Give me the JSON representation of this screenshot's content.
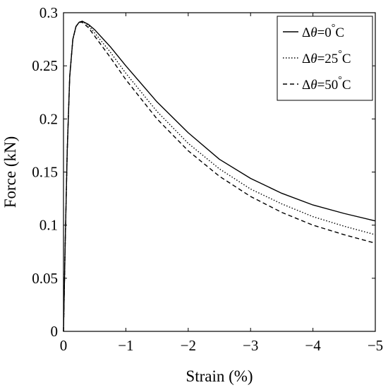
{
  "chart_data": {
    "type": "line",
    "title": "",
    "xlabel": "Strain (%)",
    "ylabel": "Force (kN)",
    "xlim": [
      0,
      -5
    ],
    "ylim": [
      0,
      0.3
    ],
    "x_ticks": [
      0,
      -1,
      -2,
      -3,
      -4,
      -5
    ],
    "x_tick_labels": [
      "0",
      "−1",
      "−2",
      "−3",
      "−4",
      "−5"
    ],
    "y_ticks": [
      0,
      0.05,
      0.1,
      0.15,
      0.2,
      0.25,
      0.3
    ],
    "y_tick_labels": [
      "0",
      "0.05",
      "0.1",
      "0.15",
      "0.2",
      "0.25",
      "0.3"
    ],
    "grid": false,
    "legend_position": "top-right",
    "series": [
      {
        "name": "Δθ=0°C",
        "legend_parts": {
          "pre": "Δ",
          "italic": "θ",
          "mid": "=0",
          "sup": "°",
          "post": "C"
        },
        "line_style": "solid",
        "color": "#000000",
        "x": [
          0,
          -0.03,
          -0.06,
          -0.1,
          -0.15,
          -0.2,
          -0.25,
          -0.3,
          -0.4,
          -0.5,
          -0.75,
          -1.0,
          -1.5,
          -2.0,
          -2.5,
          -3.0,
          -3.5,
          -4.0,
          -4.5,
          -5.0
        ],
        "y": [
          0,
          0.09,
          0.17,
          0.24,
          0.275,
          0.287,
          0.291,
          0.292,
          0.289,
          0.284,
          0.268,
          0.25,
          0.216,
          0.187,
          0.162,
          0.144,
          0.13,
          0.119,
          0.111,
          0.104
        ]
      },
      {
        "name": "Δθ=25°C",
        "legend_parts": {
          "pre": "Δ",
          "italic": "θ",
          "mid": "=25",
          "sup": "°",
          "post": "C"
        },
        "line_style": "dotted",
        "color": "#000000",
        "x": [
          0,
          -0.03,
          -0.06,
          -0.1,
          -0.15,
          -0.2,
          -0.25,
          -0.3,
          -0.4,
          -0.5,
          -0.75,
          -1.0,
          -1.5,
          -2.0,
          -2.5,
          -3.0,
          -3.5,
          -4.0,
          -4.5,
          -5.0
        ],
        "y": [
          0,
          0.09,
          0.17,
          0.24,
          0.275,
          0.287,
          0.291,
          0.292,
          0.288,
          0.281,
          0.263,
          0.243,
          0.207,
          0.177,
          0.153,
          0.134,
          0.12,
          0.108,
          0.099,
          0.091
        ]
      },
      {
        "name": "Δθ=50°C",
        "legend_parts": {
          "pre": "Δ",
          "italic": "θ",
          "mid": "=50",
          "sup": "°",
          "post": "C"
        },
        "line_style": "dashed",
        "color": "#000000",
        "x": [
          0,
          -0.03,
          -0.06,
          -0.1,
          -0.15,
          -0.2,
          -0.25,
          -0.3,
          -0.4,
          -0.5,
          -0.75,
          -1.0,
          -1.5,
          -2.0,
          -2.5,
          -3.0,
          -3.5,
          -4.0,
          -4.5,
          -5.0
        ],
        "y": [
          0,
          0.09,
          0.17,
          0.24,
          0.275,
          0.287,
          0.291,
          0.291,
          0.286,
          0.278,
          0.258,
          0.237,
          0.2,
          0.17,
          0.146,
          0.127,
          0.112,
          0.1,
          0.091,
          0.083
        ]
      }
    ]
  }
}
